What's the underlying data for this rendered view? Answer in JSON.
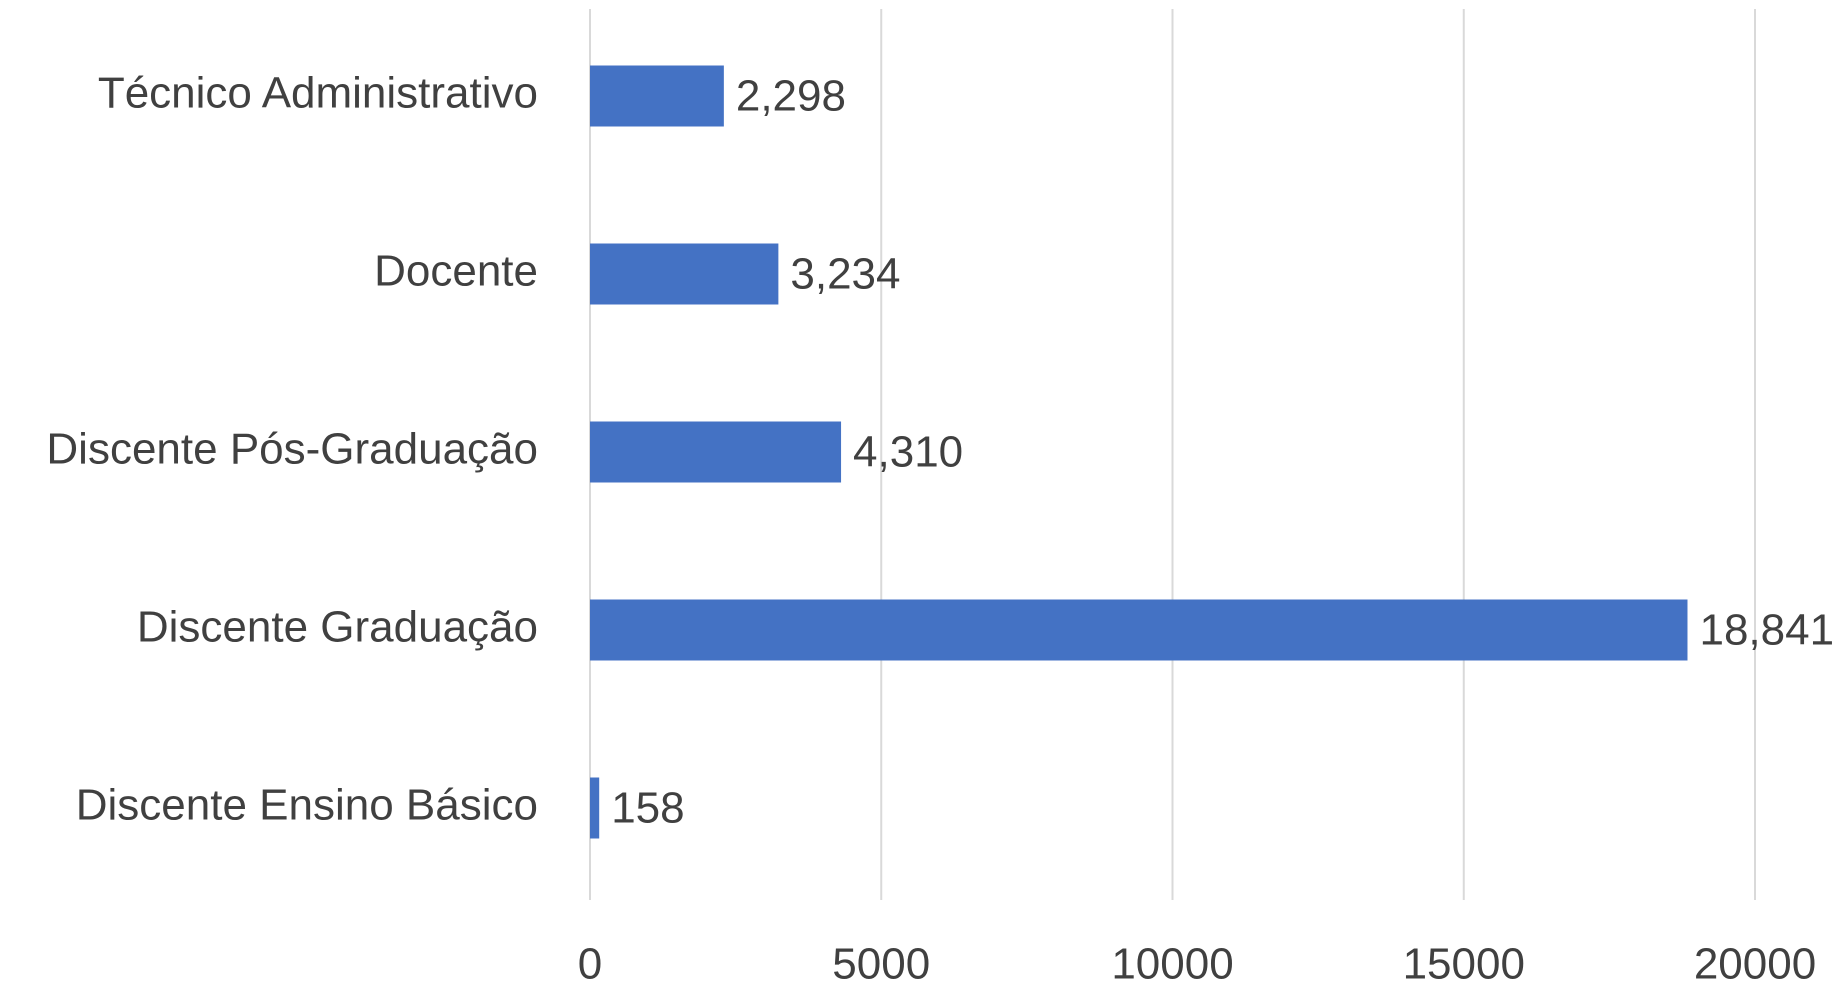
{
  "chart_data": {
    "type": "barh",
    "categories": [
      "Técnico Administrativo",
      "Docente",
      "Discente Pós-Graduação",
      "Discente Graduação",
      "Discente Ensino Básico"
    ],
    "values": [
      2298,
      3234,
      4310,
      18841,
      158
    ],
    "value_labels": [
      "2,298",
      "3,234",
      "4,310",
      "18,841",
      "158"
    ],
    "color": "#4472c4",
    "xlim": [
      0,
      20000
    ],
    "xticks": [
      0,
      5000,
      10000,
      15000,
      20000
    ],
    "grid": true
  }
}
